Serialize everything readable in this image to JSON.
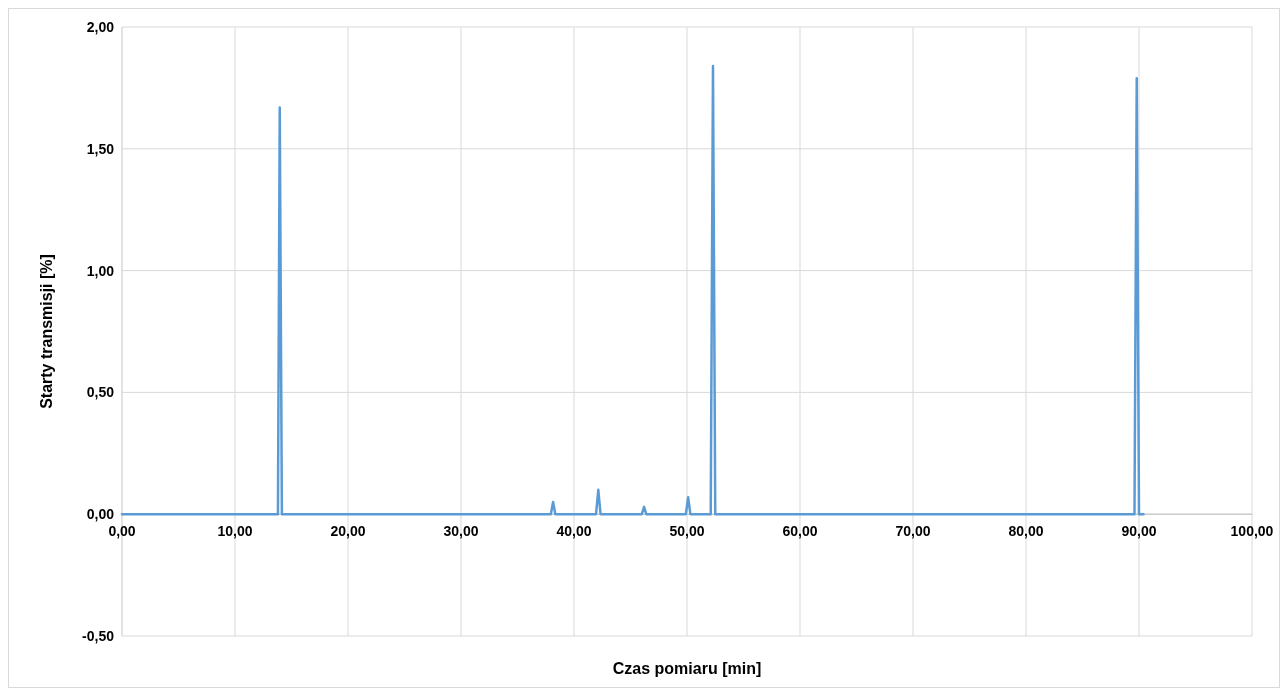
{
  "chart_data": {
    "type": "line",
    "xlabel": "Czas pomiaru [min]",
    "ylabel": "Starty transmisji [%]",
    "xlim": [
      0,
      100
    ],
    "ylim": [
      -0.5,
      2
    ],
    "xticks": [
      {
        "value": 0,
        "label": "0,00"
      },
      {
        "value": 10,
        "label": "10,00"
      },
      {
        "value": 20,
        "label": "20,00"
      },
      {
        "value": 30,
        "label": "30,00"
      },
      {
        "value": 40,
        "label": "40,00"
      },
      {
        "value": 50,
        "label": "50,00"
      },
      {
        "value": 60,
        "label": "60,00"
      },
      {
        "value": 70,
        "label": "70,00"
      },
      {
        "value": 80,
        "label": "80,00"
      },
      {
        "value": 90,
        "label": "90,00"
      },
      {
        "value": 100,
        "label": "100,00"
      }
    ],
    "yticks": [
      {
        "value": -0.5,
        "label": "-0,50"
      },
      {
        "value": 0,
        "label": "0,00"
      },
      {
        "value": 0.5,
        "label": "0,50"
      },
      {
        "value": 1,
        "label": "1,00"
      },
      {
        "value": 1.5,
        "label": "1,50"
      },
      {
        "value": 2,
        "label": "2,00"
      }
    ],
    "grid": true,
    "marker": "none",
    "line_style": "solid",
    "series": [
      {
        "color": "#5b9bd5",
        "x": [
          0,
          13.8,
          13.96,
          14.15,
          37.95,
          38.15,
          38.35,
          41.95,
          42.15,
          42.35,
          46.0,
          46.2,
          46.4,
          49.9,
          50.1,
          50.3,
          52.1,
          52.3,
          52.5,
          89.6,
          89.8,
          90.0,
          90.4
        ],
        "values": [
          0,
          0,
          1.67,
          0,
          0,
          0.05,
          0,
          0,
          0.1,
          0,
          0,
          0.03,
          0,
          0,
          0.07,
          0,
          0,
          1.84,
          0,
          0,
          1.79,
          0,
          0
        ]
      }
    ]
  }
}
